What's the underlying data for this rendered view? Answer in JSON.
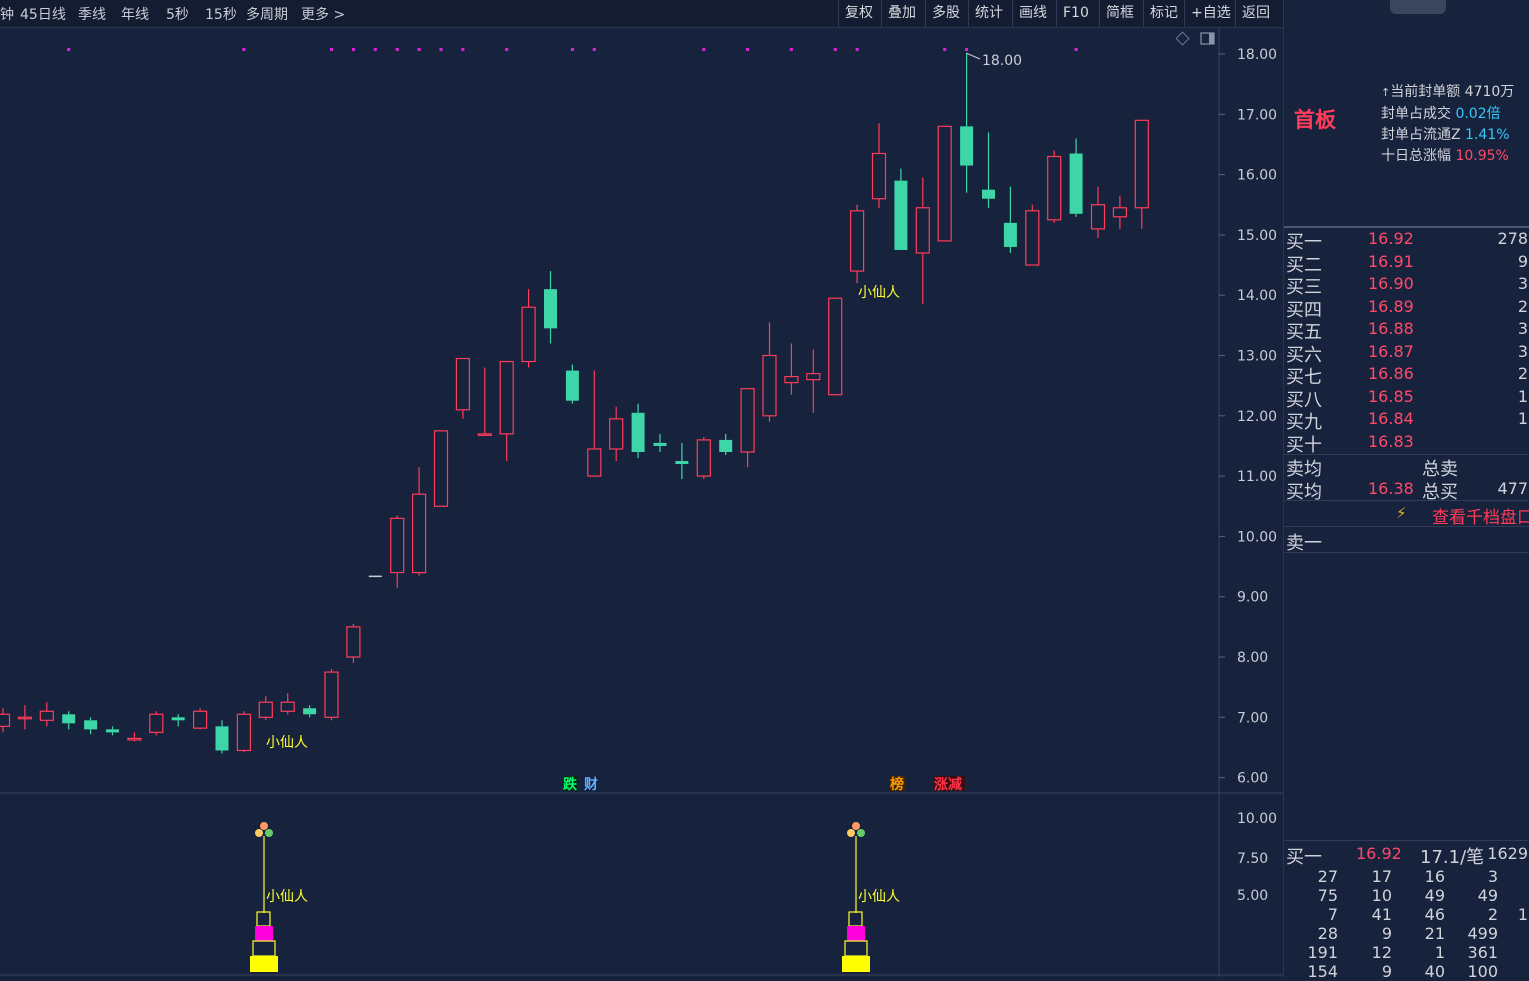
{
  "toolbar": {
    "periods": [
      "钟",
      "45日线",
      "季线",
      "年线",
      "5秒",
      "15秒",
      "多周期",
      "更多 >"
    ],
    "tools": [
      "复权",
      "叠加",
      "多股",
      "统计",
      "画线",
      "F10",
      "简框",
      "标记",
      "+自选",
      "返回"
    ]
  },
  "chart": {
    "price_axis_labels": [
      "18.00",
      "17.00",
      "16.00",
      "15.00",
      "14.00",
      "13.00",
      "12.00",
      "11.00",
      "10.00",
      "9.00",
      "8.00",
      "7.00",
      "6.00"
    ],
    "sub_axis_labels": [
      "10.00",
      "7.50",
      "5.00"
    ],
    "high_label": "18.00",
    "signal_label": "小仙人",
    "markers": [
      {
        "text": "跌",
        "color": "#00ff66"
      },
      {
        "text": "财",
        "color": "#66aaff"
      },
      {
        "text": "榜",
        "color": "#ff9900"
      },
      {
        "text": "涨减",
        "color": "#ff3344"
      }
    ],
    "colors": {
      "up": "#ff3c5a",
      "down": "#3ed6a8",
      "bg": "#17223c",
      "dot": "#e020e0",
      "label": "#ffff33"
    }
  },
  "chart_data": {
    "type": "candlestick",
    "y_range": [
      6.0,
      18.0
    ],
    "candles": [
      {
        "o": 6.85,
        "c": 7.05,
        "h": 7.15,
        "l": 6.75
      },
      {
        "o": 7.0,
        "c": 7.0,
        "h": 7.2,
        "l": 6.8
      },
      {
        "o": 6.95,
        "c": 7.1,
        "h": 7.25,
        "l": 6.85
      },
      {
        "o": 7.05,
        "c": 6.9,
        "h": 7.1,
        "l": 6.8
      },
      {
        "o": 6.95,
        "c": 6.8,
        "h": 7.0,
        "l": 6.72
      },
      {
        "o": 6.8,
        "c": 6.75,
        "h": 6.85,
        "l": 6.7
      },
      {
        "o": 6.65,
        "c": 6.65,
        "h": 6.75,
        "l": 6.6
      },
      {
        "o": 6.75,
        "c": 7.05,
        "h": 7.1,
        "l": 6.7
      },
      {
        "o": 7.0,
        "c": 6.95,
        "h": 7.05,
        "l": 6.85
      },
      {
        "o": 6.82,
        "c": 7.1,
        "h": 7.15,
        "l": 6.8
      },
      {
        "o": 6.85,
        "c": 6.45,
        "h": 6.95,
        "l": 6.4
      },
      {
        "o": 6.45,
        "c": 7.05,
        "h": 7.1,
        "l": 6.42
      },
      {
        "o": 7.0,
        "c": 7.25,
        "h": 7.35,
        "l": 6.95
      },
      {
        "o": 7.1,
        "c": 7.25,
        "h": 7.4,
        "l": 7.05
      },
      {
        "o": 7.15,
        "c": 7.05,
        "h": 7.2,
        "l": 7.0
      },
      {
        "o": 7.0,
        "c": 7.75,
        "h": 7.8,
        "l": 6.95
      },
      {
        "o": 8.0,
        "c": 8.5,
        "h": 8.55,
        "l": 7.9
      },
      {
        "o": 9.35,
        "c": 9.35,
        "h": 9.35,
        "l": 9.35
      },
      {
        "o": 9.4,
        "c": 10.3,
        "h": 10.35,
        "l": 9.15
      },
      {
        "o": 9.4,
        "c": 10.7,
        "h": 11.15,
        "l": 9.35
      },
      {
        "o": 10.5,
        "c": 11.75,
        "h": 11.75,
        "l": 10.5
      },
      {
        "o": 12.1,
        "c": 12.95,
        "h": 12.95,
        "l": 11.95
      },
      {
        "o": 11.7,
        "c": 11.7,
        "h": 12.8,
        "l": 11.7
      },
      {
        "o": 11.7,
        "c": 12.9,
        "h": 12.9,
        "l": 11.25
      },
      {
        "o": 12.9,
        "c": 13.8,
        "h": 14.1,
        "l": 12.8
      },
      {
        "o": 14.1,
        "c": 13.45,
        "h": 14.4,
        "l": 13.2
      },
      {
        "o": 12.75,
        "c": 12.25,
        "h": 12.85,
        "l": 12.2
      },
      {
        "o": 11.0,
        "c": 11.45,
        "h": 12.75,
        "l": 11.0
      },
      {
        "o": 11.45,
        "c": 11.95,
        "h": 12.15,
        "l": 11.25
      },
      {
        "o": 12.05,
        "c": 11.4,
        "h": 12.2,
        "l": 11.3
      },
      {
        "o": 11.55,
        "c": 11.5,
        "h": 11.7,
        "l": 11.4
      },
      {
        "o": 11.25,
        "c": 11.2,
        "h": 11.55,
        "l": 10.95
      },
      {
        "o": 11.0,
        "c": 11.6,
        "h": 11.65,
        "l": 10.95
      },
      {
        "o": 11.6,
        "c": 11.4,
        "h": 11.7,
        "l": 11.35
      },
      {
        "o": 11.4,
        "c": 12.45,
        "h": 12.45,
        "l": 11.15
      },
      {
        "o": 12.0,
        "c": 13.0,
        "h": 13.55,
        "l": 11.9
      },
      {
        "o": 12.55,
        "c": 12.65,
        "h": 13.2,
        "l": 12.35
      },
      {
        "o": 12.6,
        "c": 12.7,
        "h": 13.1,
        "l": 12.05
      },
      {
        "o": 12.35,
        "c": 13.95,
        "h": 13.95,
        "l": 12.35
      },
      {
        "o": 14.4,
        "c": 15.4,
        "h": 15.5,
        "l": 14.2
      },
      {
        "o": 15.6,
        "c": 16.35,
        "h": 16.85,
        "l": 15.45
      },
      {
        "o": 15.9,
        "c": 14.75,
        "h": 16.1,
        "l": 14.75
      },
      {
        "o": 14.7,
        "c": 15.45,
        "h": 15.95,
        "l": 13.85
      },
      {
        "o": 14.9,
        "c": 16.8,
        "h": 16.8,
        "l": 14.9
      },
      {
        "o": 16.8,
        "c": 16.15,
        "h": 18.0,
        "l": 15.7
      },
      {
        "o": 15.75,
        "c": 15.6,
        "h": 16.7,
        "l": 15.45
      },
      {
        "o": 15.2,
        "c": 14.8,
        "h": 15.8,
        "l": 14.7
      },
      {
        "o": 14.5,
        "c": 15.4,
        "h": 15.5,
        "l": 14.5
      },
      {
        "o": 15.25,
        "c": 16.3,
        "h": 16.4,
        "l": 15.2
      },
      {
        "o": 16.35,
        "c": 15.35,
        "h": 16.6,
        "l": 15.3
      },
      {
        "o": 15.1,
        "c": 15.5,
        "h": 15.8,
        "l": 14.95
      },
      {
        "o": 15.3,
        "c": 15.45,
        "h": 15.65,
        "l": 15.1
      },
      {
        "o": 15.45,
        "c": 16.9,
        "h": 16.9,
        "l": 15.1
      }
    ]
  },
  "panel": {
    "board_type": "首板",
    "seal_info": [
      {
        "label": "当前封单额",
        "value": "4710万",
        "tone": "w"
      },
      {
        "label": "封单占成交",
        "value": "0.02倍",
        "tone": "c"
      },
      {
        "label": "封单占流通Z",
        "value": "1.41%",
        "tone": "c"
      },
      {
        "label": "十日总涨幅",
        "value": "10.95%",
        "tone": "r"
      }
    ],
    "bids": [
      {
        "label": "买一",
        "price": "16.92",
        "vol": "278"
      },
      {
        "label": "买二",
        "price": "16.91",
        "vol": "9"
      },
      {
        "label": "买三",
        "price": "16.90",
        "vol": "3"
      },
      {
        "label": "买四",
        "price": "16.89",
        "vol": "2"
      },
      {
        "label": "买五",
        "price": "16.88",
        "vol": "3"
      },
      {
        "label": "买六",
        "price": "16.87",
        "vol": "3"
      },
      {
        "label": "买七",
        "price": "16.86",
        "vol": "2"
      },
      {
        "label": "买八",
        "price": "16.85",
        "vol": "1"
      },
      {
        "label": "买九",
        "price": "16.84",
        "vol": "1"
      },
      {
        "label": "买十",
        "price": "16.83",
        "vol": ""
      }
    ],
    "sell_avg_label": "卖均",
    "total_sell_label": "总卖",
    "buy_avg_label": "买均",
    "buy_avg": "16.38",
    "total_buy_label": "总买",
    "total_buy": "477",
    "thousand_link": "查看千档盘口",
    "sell1_label": "卖一",
    "queue": {
      "label": "买一",
      "price": "16.92",
      "per_order": "17.1/笔",
      "count": "1629",
      "rows": [
        [
          "27",
          "17",
          "16",
          "3",
          ""
        ],
        [
          "75",
          "10",
          "49",
          "49",
          ""
        ],
        [
          "7",
          "41",
          "46",
          "2",
          "1"
        ],
        [
          "28",
          "9",
          "21",
          "499",
          ""
        ],
        [
          "191",
          "12",
          "1",
          "361",
          ""
        ],
        [
          "154",
          "9",
          "40",
          "100",
          ""
        ]
      ]
    }
  }
}
